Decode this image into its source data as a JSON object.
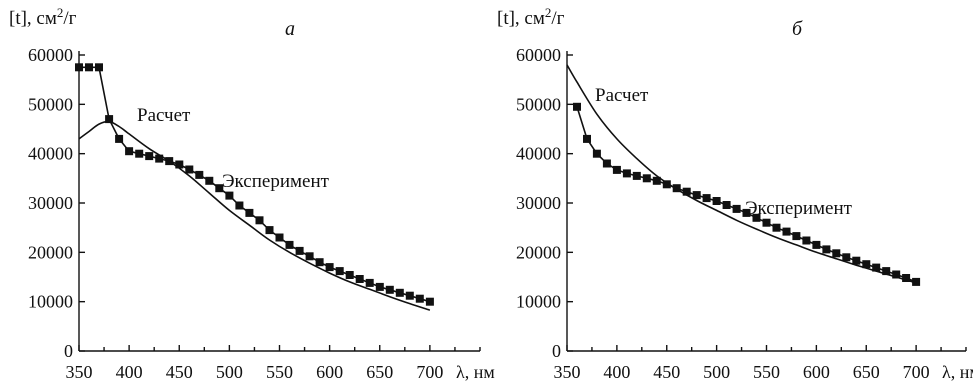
{
  "chart_data": [
    {
      "type": "line",
      "panel_label": "а",
      "ylabel": "[t], см²/г",
      "xlabel": "λ, нм",
      "xlim": [
        350,
        750
      ],
      "ylim": [
        0,
        60000
      ],
      "x_ticks": [
        350,
        400,
        450,
        500,
        550,
        600,
        650,
        700
      ],
      "y_ticks": [
        0,
        10000,
        20000,
        30000,
        40000,
        50000,
        60000
      ],
      "series": [
        {
          "name": "Эксперимент",
          "markers": true,
          "x": [
            350,
            360,
            370,
            380,
            390,
            400,
            410,
            420,
            430,
            440,
            450,
            460,
            470,
            480,
            490,
            500,
            510,
            520,
            530,
            540,
            550,
            560,
            570,
            580,
            590,
            600,
            610,
            620,
            630,
            640,
            650,
            660,
            670,
            680,
            690,
            700
          ],
          "y": [
            57500,
            57500,
            57500,
            47000,
            43000,
            40500,
            40000,
            39500,
            39000,
            38500,
            37800,
            36800,
            35700,
            34500,
            33000,
            31500,
            29500,
            28000,
            26500,
            24500,
            23000,
            21500,
            20300,
            19200,
            18000,
            17000,
            16200,
            15400,
            14600,
            13800,
            13000,
            12400,
            11800,
            11200,
            10600,
            10000
          ]
        },
        {
          "name": "Расчет",
          "markers": false,
          "x": [
            350,
            360,
            370,
            380,
            390,
            400,
            420,
            440,
            460,
            480,
            500,
            520,
            540,
            560,
            580,
            600,
            620,
            640,
            660,
            680,
            700
          ],
          "y": [
            43000,
            44500,
            46000,
            46500,
            45500,
            44000,
            41000,
            38500,
            35500,
            32000,
            28500,
            25500,
            22500,
            20000,
            17800,
            15800,
            14000,
            12500,
            11000,
            9600,
            8300
          ]
        }
      ]
    },
    {
      "type": "line",
      "panel_label": "б",
      "ylabel": "[t], см²/г",
      "xlabel": "λ, нм",
      "xlim": [
        350,
        750
      ],
      "ylim": [
        0,
        60000
      ],
      "x_ticks": [
        350,
        400,
        450,
        500,
        550,
        600,
        650,
        700
      ],
      "y_ticks": [
        0,
        10000,
        20000,
        30000,
        40000,
        50000,
        60000
      ],
      "series": [
        {
          "name": "Эксперимент",
          "markers": true,
          "x": [
            360,
            370,
            380,
            390,
            400,
            410,
            420,
            430,
            440,
            450,
            460,
            470,
            480,
            490,
            500,
            510,
            520,
            530,
            540,
            550,
            560,
            570,
            580,
            590,
            600,
            610,
            620,
            630,
            640,
            650,
            660,
            670,
            680,
            690,
            700
          ],
          "y": [
            49500,
            43000,
            40000,
            38000,
            36700,
            36000,
            35500,
            35000,
            34500,
            33800,
            33000,
            32300,
            31600,
            31000,
            30400,
            29600,
            28800,
            28000,
            27000,
            26000,
            25000,
            24200,
            23300,
            22400,
            21500,
            20600,
            19800,
            19000,
            18300,
            17600,
            16900,
            16200,
            15500,
            14800,
            14000
          ]
        },
        {
          "name": "Расчет",
          "markers": false,
          "x": [
            350,
            360,
            380,
            400,
            420,
            440,
            460,
            480,
            500,
            520,
            540,
            560,
            580,
            600,
            620,
            640,
            660,
            680,
            700
          ],
          "y": [
            58000,
            54500,
            48000,
            43000,
            39000,
            35500,
            32800,
            30500,
            28500,
            26500,
            24700,
            23000,
            21500,
            20000,
            18700,
            17400,
            16200,
            15000,
            13800
          ]
        }
      ]
    }
  ]
}
